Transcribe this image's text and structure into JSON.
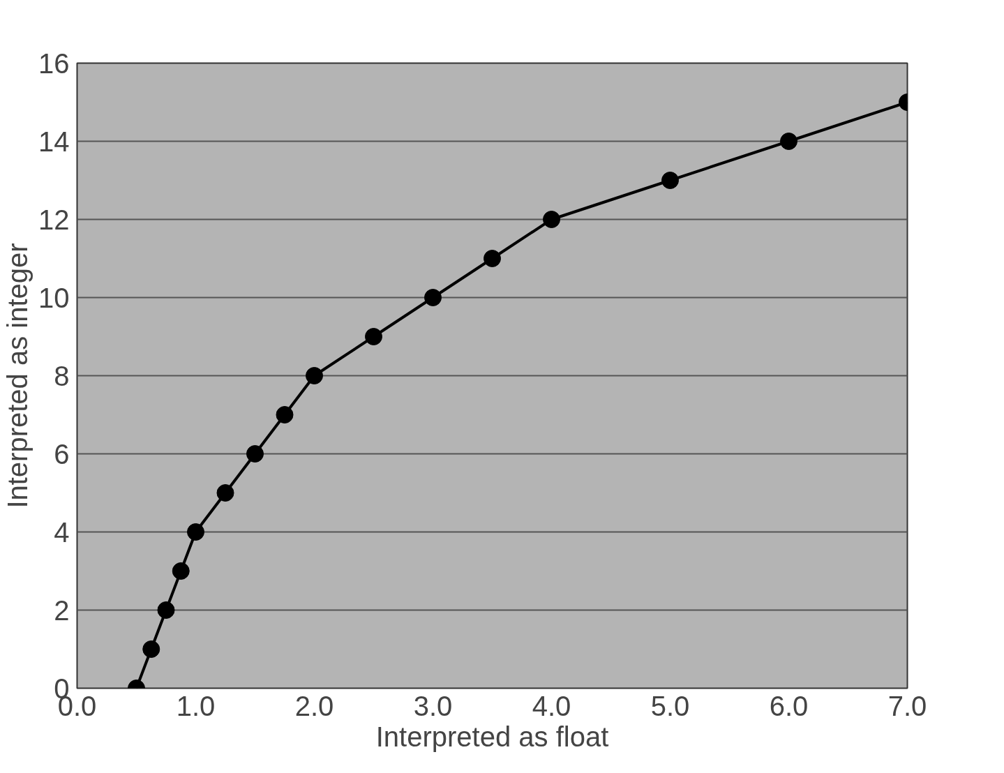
{
  "chart_data": {
    "type": "line",
    "xlabel": "Interpreted as float",
    "ylabel": "Interpreted as integer",
    "x": [
      0.5,
      0.625,
      0.75,
      0.875,
      1.0,
      1.25,
      1.5,
      1.75,
      2.0,
      2.5,
      3.0,
      3.5,
      4.0,
      5.0,
      6.0,
      7.0
    ],
    "series": [
      {
        "color": "#000000",
        "values": [
          0,
          1,
          2,
          3,
          4,
          5,
          6,
          7,
          8,
          9,
          10,
          11,
          12,
          13,
          14,
          15
        ]
      }
    ],
    "xlim": [
      0,
      7
    ],
    "ylim": [
      0,
      16
    ],
    "xticks": [
      {
        "value": 0,
        "label": "0.0"
      },
      {
        "value": 1,
        "label": "1.0"
      },
      {
        "value": 2,
        "label": "2.0"
      },
      {
        "value": 3,
        "label": "3.0"
      },
      {
        "value": 4,
        "label": "4.0"
      },
      {
        "value": 5,
        "label": "5.0"
      },
      {
        "value": 6,
        "label": "6.0"
      },
      {
        "value": 7,
        "label": "7.0"
      }
    ],
    "yticks": [
      0,
      2,
      4,
      6,
      8,
      10,
      12,
      14,
      16
    ],
    "grid": "y",
    "marker": "circle",
    "line_style": "solid"
  }
}
